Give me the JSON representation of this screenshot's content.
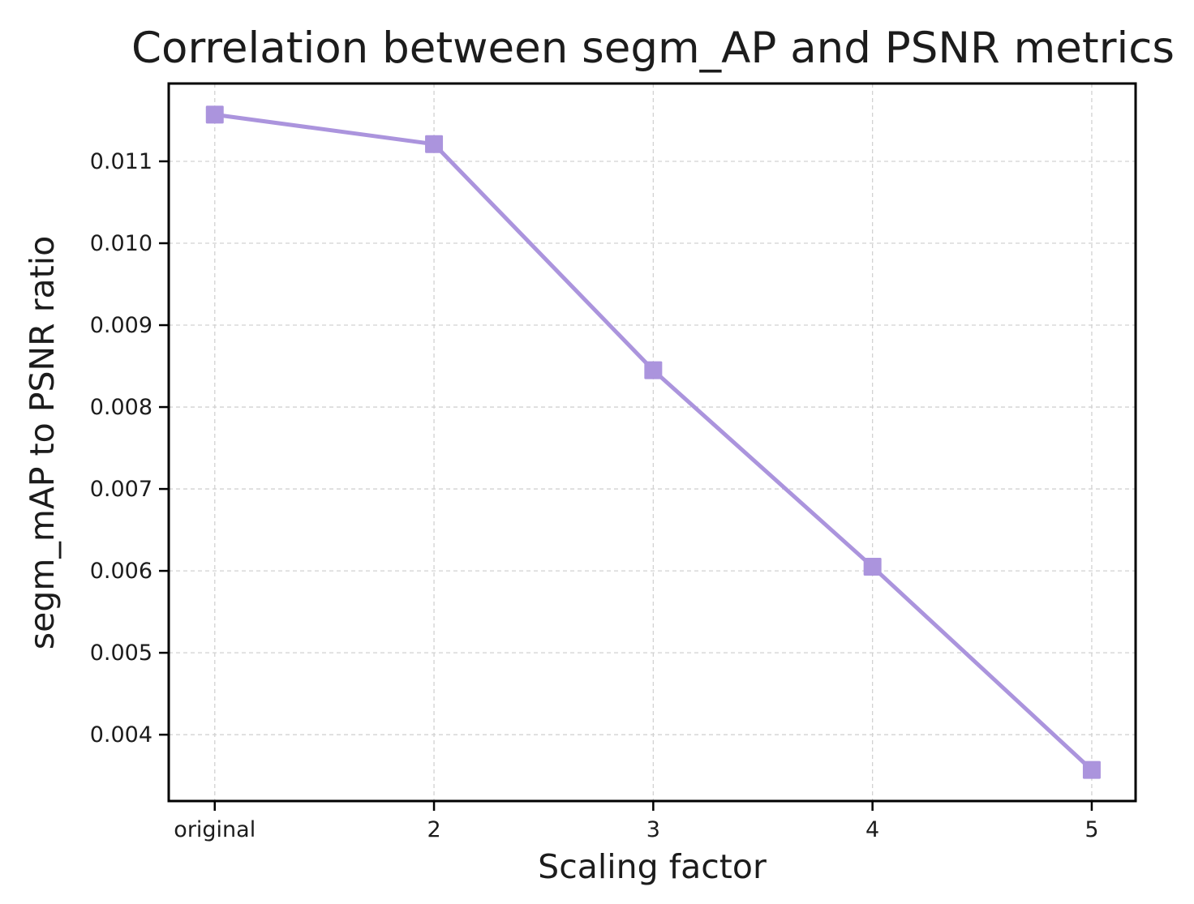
{
  "chart_data": {
    "type": "line",
    "title": "Correlation between segm_AP and PSNR metrics",
    "xlabel": "Scaling factor",
    "ylabel": "segm_mAP to PSNR ratio",
    "categories": [
      "original",
      "2",
      "3",
      "4",
      "5"
    ],
    "x": [
      1,
      2,
      3,
      4,
      5
    ],
    "series": [
      {
        "name": "segm_mAP to PSNR ratio",
        "values": [
          0.01157,
          0.01121,
          0.00845,
          0.00605,
          0.00357
        ]
      }
    ],
    "xlim": [
      0.79,
      5.2
    ],
    "ylim": [
      0.00319,
      0.01195
    ],
    "yticks": [
      0.004,
      0.005,
      0.006,
      0.007,
      0.008,
      0.009,
      0.01,
      0.011
    ],
    "ytick_decimals": 3,
    "grid": true,
    "legend_position": "none",
    "marker": "square",
    "colors": {
      "line": "#ab94dd",
      "marker": "#ab94dd",
      "grid": "#d2d2d2",
      "axis": "#000000",
      "text": "#1c1c1c",
      "background": "#ffffff"
    }
  }
}
